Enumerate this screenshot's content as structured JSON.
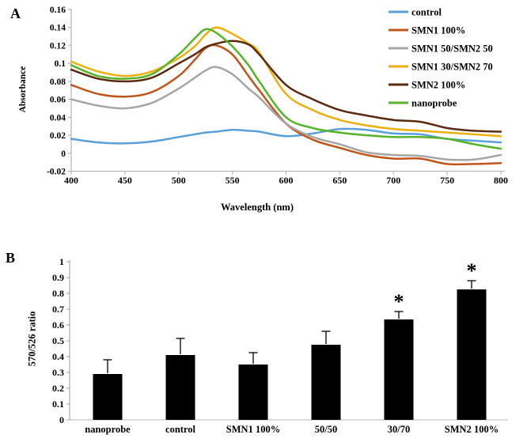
{
  "panelA": {
    "label": "A",
    "chart_data": {
      "type": "line",
      "title": "",
      "xlabel": "Wavelength (nm)",
      "ylabel": "Absorbance",
      "xlim": [
        400,
        800
      ],
      "ylim": [
        -0.02,
        0.16
      ],
      "grid": false,
      "legend_position": "top-right",
      "x_ticks": [
        400,
        450,
        500,
        550,
        600,
        650,
        700,
        750,
        800
      ],
      "y_tick_labels": [
        "0.16",
        "0.14",
        "0.12",
        "0.1",
        "0.08",
        "0.06",
        "0.04",
        "0.02",
        "0",
        "-0.02"
      ],
      "x": [
        400,
        425,
        450,
        475,
        500,
        515,
        525,
        535,
        550,
        565,
        575,
        600,
        625,
        650,
        675,
        700,
        725,
        750,
        775,
        800
      ],
      "series": [
        {
          "name": "control",
          "color": "#58A0DC",
          "values": [
            0.016,
            0.012,
            0.011,
            0.013,
            0.018,
            0.021,
            0.023,
            0.024,
            0.026,
            0.025,
            0.024,
            0.019,
            0.022,
            0.027,
            0.026,
            0.022,
            0.021,
            0.016,
            0.014,
            0.012
          ]
        },
        {
          "name": "SMN1 100%",
          "color": "#C0551A",
          "values": [
            0.076,
            0.066,
            0.063,
            0.068,
            0.086,
            0.104,
            0.117,
            0.12,
            0.11,
            0.086,
            0.07,
            0.033,
            0.015,
            0.006,
            -0.002,
            -0.006,
            -0.006,
            -0.012,
            -0.012,
            -0.011
          ]
        },
        {
          "name": "SMN1 50/SMN2 50",
          "color": "#A6A6A6",
          "values": [
            0.06,
            0.053,
            0.05,
            0.056,
            0.072,
            0.084,
            0.092,
            0.096,
            0.088,
            0.072,
            0.062,
            0.033,
            0.018,
            0.01,
            0.001,
            -0.002,
            -0.003,
            -0.007,
            -0.007,
            -0.002
          ]
        },
        {
          "name": "SMN1 30/SMN2 70",
          "color": "#EDAF10",
          "values": [
            0.102,
            0.091,
            0.086,
            0.091,
            0.106,
            0.119,
            0.132,
            0.14,
            0.133,
            0.122,
            0.112,
            0.066,
            0.048,
            0.037,
            0.031,
            0.027,
            0.025,
            0.023,
            0.021,
            0.019
          ]
        },
        {
          "name": "SMN2 100%",
          "color": "#5B2A0E",
          "values": [
            0.093,
            0.083,
            0.08,
            0.084,
            0.1,
            0.11,
            0.118,
            0.122,
            0.125,
            0.121,
            0.11,
            0.076,
            0.06,
            0.048,
            0.042,
            0.037,
            0.035,
            0.028,
            0.025,
            0.024
          ]
        },
        {
          "name": "nanoprobe",
          "color": "#55B427",
          "values": [
            0.098,
            0.086,
            0.083,
            0.088,
            0.11,
            0.128,
            0.138,
            0.134,
            0.119,
            0.098,
            0.08,
            0.04,
            0.028,
            0.023,
            0.02,
            0.018,
            0.018,
            0.016,
            0.01,
            0.005
          ]
        }
      ]
    }
  },
  "panelB": {
    "label": "B",
    "chart_data": {
      "type": "bar",
      "title": "",
      "xlabel": "",
      "ylabel": "570/526 ratio",
      "ylim": [
        0,
        1
      ],
      "grid": false,
      "y_tick_labels": [
        "1",
        "0.9",
        "0.8",
        "0.7",
        "0.6",
        "0.5",
        "0.4",
        "0.3",
        "0.2",
        "0.1",
        "0"
      ],
      "categories": [
        "nanoprobe",
        "control",
        "SMN1 100%",
        "50/50",
        "30/70",
        "SMN2 100%"
      ],
      "values": [
        0.29,
        0.41,
        0.35,
        0.475,
        0.635,
        0.825
      ],
      "errors_plus": [
        0.09,
        0.105,
        0.075,
        0.085,
        0.05,
        0.055
      ],
      "significance": [
        "",
        "",
        "",
        "",
        "*",
        "*"
      ],
      "bar_color": "#000000"
    }
  }
}
